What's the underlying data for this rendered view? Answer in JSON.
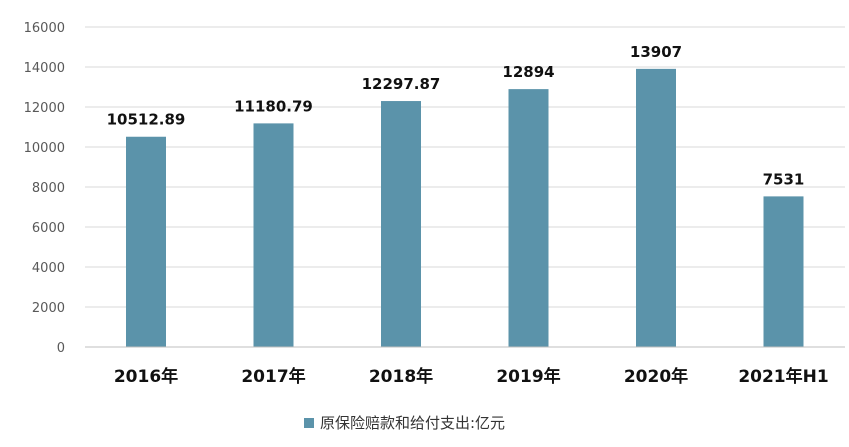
{
  "chart_data": {
    "type": "bar",
    "categories": [
      "2016年",
      "2017年",
      "2018年",
      "2019年",
      "2020年",
      "2021年H1"
    ],
    "series": [
      {
        "name": "原保险赔款和给付支出:亿元",
        "values": [
          10512.89,
          11180.79,
          12297.87,
          12894,
          13907,
          7531
        ],
        "labels": [
          "10512.89",
          "11180.79",
          "12297.87",
          "12894",
          "13907",
          "7531"
        ]
      }
    ],
    "yticks": [
      0,
      2000,
      4000,
      6000,
      8000,
      10000,
      12000,
      14000,
      16000
    ],
    "ylim": [
      0,
      16000
    ],
    "grid": true,
    "legend_position": "bottom",
    "colors": {
      "bar": "#5b93aa",
      "grid": "#d9d9d9",
      "axis": "#bfbfbf"
    }
  }
}
